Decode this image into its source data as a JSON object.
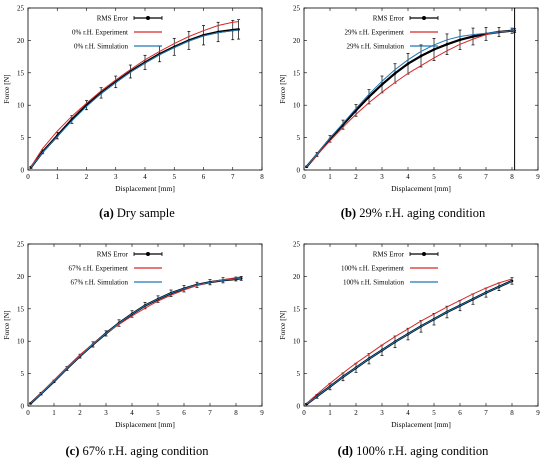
{
  "chart_data": [
    {
      "type": "line",
      "panel_label": "(a)",
      "caption": "Dry sample",
      "xlabel": "Displacement [mm]",
      "ylabel": "Force [N]",
      "xlim": [
        0,
        8
      ],
      "ylim": [
        0,
        25
      ],
      "xticks": [
        0,
        1,
        2,
        3,
        4,
        5,
        6,
        7,
        8
      ],
      "yticks": [
        0,
        5,
        10,
        15,
        20,
        25
      ],
      "legend_position": "top-right",
      "series": [
        {
          "name": "RMS Error",
          "kind": "errorbar",
          "color": "#000000",
          "x": [
            0.1,
            0.5,
            1,
            1.5,
            2,
            2.5,
            3,
            3.5,
            4,
            4.5,
            5,
            5.5,
            6,
            6.5,
            7,
            7.2
          ],
          "y": [
            0.4,
            2.8,
            5.3,
            7.8,
            10.0,
            11.9,
            13.6,
            15.2,
            16.6,
            17.9,
            19.0,
            20.0,
            20.8,
            21.3,
            21.6,
            21.7
          ],
          "err": [
            0.15,
            0.3,
            0.5,
            0.6,
            0.7,
            0.8,
            0.9,
            1.0,
            1.1,
            1.2,
            1.3,
            1.4,
            1.5,
            1.5,
            1.5,
            1.5
          ]
        },
        {
          "name": "0% r.H. Experiment",
          "kind": "line",
          "color": "#d62728",
          "x": [
            0.1,
            0.5,
            1,
            1.5,
            2,
            2.5,
            3,
            3.5,
            4,
            4.5,
            5,
            5.5,
            6,
            6.5,
            7,
            7.2
          ],
          "y": [
            0.5,
            3.3,
            6.0,
            8.3,
            10.3,
            12.2,
            13.9,
            15.5,
            17.0,
            18.3,
            19.5,
            20.6,
            21.5,
            22.3,
            22.8,
            22.9
          ]
        },
        {
          "name": "0% r.H. Simulation",
          "kind": "line",
          "color": "#1f77b4",
          "x": [
            0.1,
            0.5,
            1,
            1.5,
            2,
            2.5,
            3,
            3.5,
            4,
            4.5,
            5,
            5.5,
            6,
            6.5,
            7,
            7.2
          ],
          "y": [
            0.4,
            2.7,
            5.2,
            7.6,
            9.8,
            11.8,
            13.5,
            15.1,
            16.5,
            17.8,
            18.9,
            19.9,
            20.7,
            21.2,
            21.5,
            21.6
          ]
        }
      ]
    },
    {
      "type": "line",
      "panel_label": "(b)",
      "caption": "29% r.H. aging condition",
      "xlabel": "Displacement [mm]",
      "ylabel": "Force [N]",
      "xlim": [
        0,
        9
      ],
      "ylim": [
        0,
        25
      ],
      "xticks": [
        0,
        1,
        2,
        3,
        4,
        5,
        6,
        7,
        8,
        9
      ],
      "yticks": [
        0,
        5,
        10,
        15,
        20,
        25
      ],
      "vertical_line_x": 8.1,
      "legend_position": "top-right",
      "series": [
        {
          "name": "RMS Error",
          "kind": "errorbar",
          "color": "#000000",
          "x": [
            0.1,
            0.5,
            1,
            1.5,
            2,
            2.5,
            3,
            3.5,
            4,
            4.5,
            5,
            5.5,
            6,
            6.5,
            7,
            7.5,
            8,
            8.1
          ],
          "y": [
            0.5,
            2.4,
            4.8,
            7.0,
            9.2,
            11.3,
            13.2,
            14.9,
            16.4,
            17.6,
            18.6,
            19.4,
            20.1,
            20.6,
            21.0,
            21.3,
            21.5,
            21.5
          ],
          "err": [
            0.1,
            0.3,
            0.5,
            0.7,
            0.9,
            1.1,
            1.3,
            1.5,
            1.6,
            1.7,
            1.7,
            1.6,
            1.5,
            1.3,
            1.0,
            0.7,
            0.4,
            0.3
          ]
        },
        {
          "name": "29% r.H. Experiment",
          "kind": "line",
          "color": "#d62728",
          "x": [
            0.1,
            0.5,
            1,
            1.5,
            2,
            2.5,
            3,
            3.5,
            4,
            4.5,
            5,
            5.5,
            6,
            6.5,
            7,
            7.5,
            8,
            8.1
          ],
          "y": [
            0.5,
            2.3,
            4.5,
            6.6,
            8.6,
            10.4,
            12.0,
            13.5,
            14.9,
            16.1,
            17.3,
            18.4,
            19.4,
            20.2,
            20.9,
            21.3,
            21.5,
            21.5
          ]
        },
        {
          "name": "29% r.H. Simulation",
          "kind": "line",
          "color": "#1f77b4",
          "x": [
            0.1,
            0.5,
            1,
            1.5,
            2,
            2.5,
            3,
            3.5,
            4,
            4.5,
            5,
            5.5,
            6,
            6.5,
            7,
            7.5,
            8,
            8.1
          ],
          "y": [
            0.5,
            2.5,
            4.9,
            7.2,
            9.5,
            11.7,
            13.7,
            15.5,
            17.0,
            18.3,
            19.3,
            20.1,
            20.6,
            20.9,
            21.1,
            21.3,
            21.5,
            21.5
          ]
        }
      ]
    },
    {
      "type": "line",
      "panel_label": "(c)",
      "caption": "67% r.H. aging condition",
      "xlabel": "Displacement [mm]",
      "ylabel": "Force [N]",
      "xlim": [
        0,
        9
      ],
      "ylim": [
        0,
        25
      ],
      "xticks": [
        0,
        1,
        2,
        3,
        4,
        5,
        6,
        7,
        8,
        9
      ],
      "yticks": [
        0,
        5,
        10,
        15,
        20,
        25
      ],
      "legend_position": "top-right",
      "series": [
        {
          "name": "RMS Error",
          "kind": "errorbar",
          "color": "#000000",
          "x": [
            0.1,
            0.5,
            1,
            1.5,
            2,
            2.5,
            3,
            3.5,
            4,
            4.5,
            5,
            5.5,
            6,
            6.5,
            7,
            7.5,
            8,
            8.2
          ],
          "y": [
            0.4,
            1.9,
            3.8,
            5.8,
            7.7,
            9.5,
            11.2,
            12.8,
            14.2,
            15.5,
            16.5,
            17.4,
            18.1,
            18.7,
            19.1,
            19.4,
            19.6,
            19.7
          ],
          "err": [
            0.1,
            0.2,
            0.2,
            0.3,
            0.3,
            0.4,
            0.4,
            0.5,
            0.5,
            0.5,
            0.5,
            0.5,
            0.5,
            0.4,
            0.4,
            0.4,
            0.3,
            0.3
          ]
        },
        {
          "name": "67% r.H. Experiment",
          "kind": "line",
          "color": "#d62728",
          "x": [
            0.1,
            0.5,
            1,
            1.5,
            2,
            2.5,
            3,
            3.5,
            4,
            4.5,
            5,
            5.5,
            6,
            6.5,
            7,
            7.5,
            8,
            8.2
          ],
          "y": [
            0.4,
            2.0,
            4.0,
            6.0,
            7.9,
            9.6,
            11.2,
            12.6,
            13.9,
            15.1,
            16.2,
            17.1,
            17.9,
            18.6,
            19.1,
            19.5,
            19.8,
            19.9
          ]
        },
        {
          "name": "67% r.H. Simulation",
          "kind": "line",
          "color": "#1f77b4",
          "x": [
            0.1,
            0.5,
            1,
            1.5,
            2,
            2.5,
            3,
            3.5,
            4,
            4.5,
            5,
            5.5,
            6,
            6.5,
            7,
            7.5,
            8,
            8.2
          ],
          "y": [
            0.4,
            1.9,
            3.8,
            5.8,
            7.7,
            9.5,
            11.2,
            12.8,
            14.2,
            15.5,
            16.5,
            17.4,
            18.1,
            18.7,
            19.1,
            19.4,
            19.6,
            19.7
          ]
        }
      ]
    },
    {
      "type": "line",
      "panel_label": "(d)",
      "caption": "100% r.H. aging condition",
      "xlabel": "Displacement [mm]",
      "ylabel": "Force [N]",
      "xlim": [
        0,
        9
      ],
      "ylim": [
        0,
        25
      ],
      "xticks": [
        0,
        1,
        2,
        3,
        4,
        5,
        6,
        7,
        8,
        9
      ],
      "yticks": [
        0,
        5,
        10,
        15,
        20,
        25
      ],
      "legend_position": "top-right",
      "series": [
        {
          "name": "RMS Error",
          "kind": "errorbar",
          "color": "#000000",
          "x": [
            0.1,
            0.5,
            1,
            1.5,
            2,
            2.5,
            3,
            3.5,
            4,
            4.5,
            5,
            5.5,
            6,
            6.5,
            7,
            7.5,
            8
          ],
          "y": [
            0.3,
            1.5,
            3.0,
            4.5,
            5.9,
            7.3,
            8.6,
            9.9,
            11.1,
            12.3,
            13.4,
            14.5,
            15.5,
            16.5,
            17.5,
            18.4,
            19.3
          ],
          "err": [
            0.1,
            0.3,
            0.5,
            0.6,
            0.7,
            0.8,
            0.8,
            0.9,
            0.9,
            0.9,
            0.9,
            0.9,
            0.8,
            0.8,
            0.7,
            0.6,
            0.5
          ]
        },
        {
          "name": "100% r.H. Experiment",
          "kind": "line",
          "color": "#d62728",
          "x": [
            0.1,
            0.5,
            1,
            1.5,
            2,
            2.5,
            3,
            3.5,
            4,
            4.5,
            5,
            5.5,
            6,
            6.5,
            7,
            7.5,
            8
          ],
          "y": [
            0.4,
            1.8,
            3.5,
            5.1,
            6.6,
            8.0,
            9.4,
            10.7,
            11.9,
            13.1,
            14.2,
            15.3,
            16.3,
            17.3,
            18.2,
            19.0,
            19.6
          ]
        },
        {
          "name": "100% r.H. Simulation",
          "kind": "line",
          "color": "#1f77b4",
          "x": [
            0.1,
            0.5,
            1,
            1.5,
            2,
            2.5,
            3,
            3.5,
            4,
            4.5,
            5,
            5.5,
            6,
            6.5,
            7,
            7.5,
            8
          ],
          "y": [
            0.3,
            1.5,
            3.0,
            4.5,
            5.9,
            7.3,
            8.6,
            9.9,
            11.1,
            12.3,
            13.4,
            14.5,
            15.5,
            16.5,
            17.5,
            18.4,
            19.3
          ]
        }
      ]
    }
  ]
}
